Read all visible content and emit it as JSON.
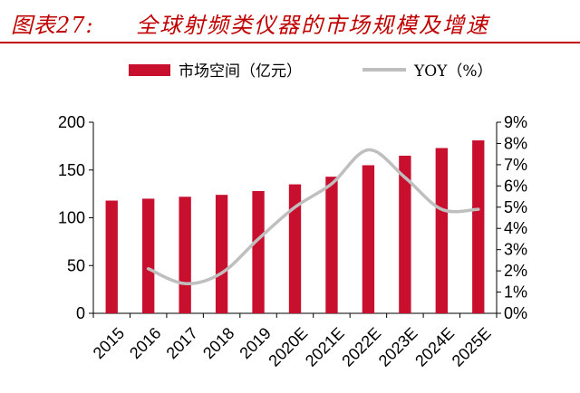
{
  "figure": {
    "label": "图表27:",
    "title": "全球射频类仪器的市场规模及增速"
  },
  "chart_data": {
    "type": "bar",
    "categories": [
      "2015",
      "2016",
      "2017",
      "2018",
      "2019",
      "2020E",
      "2021E",
      "2022E",
      "2023E",
      "2024E",
      "2025E"
    ],
    "series": [
      {
        "name": "市场空间（亿元）",
        "type": "bar",
        "axis": "left",
        "values": [
          118,
          120,
          122,
          124,
          128,
          135,
          143,
          155,
          165,
          173,
          181
        ]
      },
      {
        "name": "YOY（%）",
        "type": "line",
        "axis": "right",
        "values": [
          null,
          2.1,
          1.4,
          1.9,
          3.5,
          5.0,
          6.1,
          7.7,
          6.4,
          4.9,
          4.9
        ]
      }
    ],
    "y_left": {
      "min": 0,
      "max": 200,
      "ticks": [
        "0",
        "50",
        "100",
        "150",
        "200"
      ]
    },
    "y_right": {
      "min": 0,
      "max": 9,
      "ticks": [
        "0%",
        "1%",
        "2%",
        "3%",
        "4%",
        "5%",
        "6%",
        "7%",
        "8%",
        "9%"
      ]
    },
    "legend_position": "top",
    "colors": {
      "bar": "#c8102e",
      "line": "#bfbfbf",
      "title": "#c00000"
    }
  }
}
